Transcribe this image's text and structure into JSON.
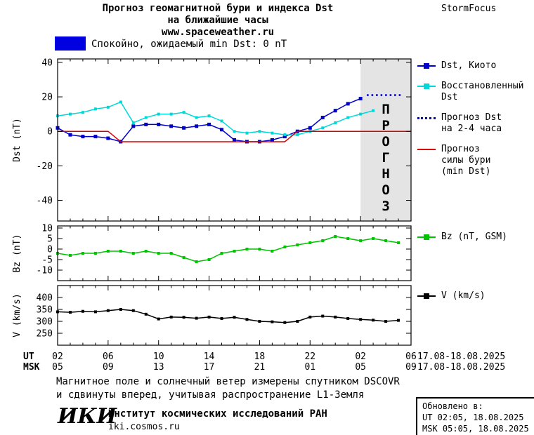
{
  "header": {
    "title_line1": "Прогноз геомагнитной бури и индекса Dst",
    "title_line2": "на ближайшие часы",
    "url": "www.spaceweather.ru",
    "brand": "StormFocus"
  },
  "status": {
    "label": "Спокойно, ожидаемый min Dst: 0 nT",
    "swatch_color": "#0000e0"
  },
  "x_axis": {
    "hour_min": 2,
    "hour_max": 30,
    "major_hours": [
      2,
      6,
      10,
      14,
      18,
      22,
      26,
      30
    ],
    "minor_step": 1,
    "ut_label": "UT",
    "msk_label": "MSK",
    "ut_ticks": [
      "02",
      "06",
      "10",
      "14",
      "18",
      "22",
      "02",
      "06"
    ],
    "msk_ticks": [
      "05",
      "09",
      "13",
      "17",
      "21",
      "01",
      "05",
      "09"
    ],
    "ut_date": "17.08-18.08.2025",
    "msk_date": "17.08-18.08.2025"
  },
  "chart_data": [
    {
      "name": "dst",
      "type": "line",
      "ylabel": "Dst (nT)",
      "ylim": [
        -52,
        42
      ],
      "yticks": [
        40,
        20,
        0,
        -20,
        -40
      ],
      "ytick_labels": [
        "40",
        "20",
        "0",
        "-20",
        "-40"
      ],
      "forecast_band": {
        "from": 26,
        "to": 30,
        "label": "ПРОГНОЗ",
        "fill": "#e4e4e4",
        "text_color": "#b0b0b0"
      },
      "series": [
        {
          "name": "Dst, Киото",
          "color": "#0000cc",
          "style": "solid",
          "marker": "square",
          "marker_size": 5,
          "x": [
            2,
            3,
            4,
            5,
            6,
            7,
            8,
            9,
            10,
            11,
            12,
            13,
            14,
            15,
            16,
            17,
            18,
            19,
            20,
            21,
            22,
            23,
            24,
            25,
            26
          ],
          "values": [
            2,
            -2,
            -3,
            -3,
            -4,
            -6,
            3,
            4,
            4,
            3,
            2,
            3,
            4,
            1,
            -5,
            -6,
            -6,
            -5,
            -3,
            0,
            2,
            8,
            12,
            16,
            19
          ]
        },
        {
          "name": "Восстановленный Dst",
          "color": "#00d8d8",
          "style": "solid",
          "marker": "square",
          "marker_size": 4,
          "x": [
            2,
            3,
            4,
            5,
            6,
            7,
            8,
            9,
            10,
            11,
            12,
            13,
            14,
            15,
            16,
            17,
            18,
            19,
            20,
            21,
            22,
            23,
            24,
            25,
            26,
            27
          ],
          "values": [
            9,
            10,
            11,
            13,
            14,
            17,
            5,
            8,
            10,
            10,
            11,
            8,
            9,
            6,
            0,
            -1,
            0,
            -1,
            -2,
            -2,
            0,
            2,
            5,
            8,
            10,
            12
          ]
        },
        {
          "name": "Прогноз Dst на 2-4 часа",
          "color": "#0000cc",
          "style": "dotted",
          "marker": "none",
          "x": [
            26.5,
            29.3
          ],
          "values": [
            21,
            21
          ]
        },
        {
          "name": "Прогноз силы бури (min Dst)",
          "color": "#dd0000",
          "style": "solid",
          "marker": "none",
          "x": [
            2,
            6,
            7,
            20,
            21,
            30
          ],
          "values": [
            0,
            0,
            -6,
            -6,
            0,
            0
          ]
        }
      ]
    },
    {
      "name": "bz",
      "type": "line",
      "ylabel": "Bz (nT)",
      "ylim": [
        -15,
        11
      ],
      "yticks": [
        10,
        5,
        0,
        -5,
        -10
      ],
      "ytick_labels": [
        "10",
        "5",
        "0",
        "-5",
        "-10"
      ],
      "series": [
        {
          "name": "Bz (nT, GSM)",
          "color": "#00c400",
          "style": "solid",
          "marker": "square",
          "marker_size": 4,
          "x": [
            2,
            3,
            4,
            5,
            6,
            7,
            8,
            9,
            10,
            11,
            12,
            13,
            14,
            15,
            16,
            17,
            18,
            19,
            20,
            21,
            22,
            23,
            24,
            25,
            26,
            27,
            28,
            29
          ],
          "values": [
            -2,
            -3,
            -2,
            -2,
            -1,
            -1,
            -2,
            -1,
            -2,
            -2,
            -4,
            -6,
            -5,
            -2,
            -1,
            0,
            0,
            -1,
            1,
            2,
            3,
            4,
            6,
            5,
            4,
            5,
            4,
            3
          ]
        }
      ]
    },
    {
      "name": "v",
      "type": "line",
      "ylabel": "V (km/s)",
      "ylim": [
        200,
        450
      ],
      "yticks": [
        400,
        350,
        300,
        250
      ],
      "ytick_labels": [
        "400",
        "350",
        "300",
        "250"
      ],
      "series": [
        {
          "name": "V (km/s)",
          "color": "#000000",
          "style": "solid",
          "marker": "square",
          "marker_size": 4,
          "x": [
            2,
            3,
            4,
            5,
            6,
            7,
            8,
            9,
            10,
            11,
            12,
            13,
            14,
            15,
            16,
            17,
            18,
            19,
            20,
            21,
            22,
            23,
            24,
            25,
            26,
            27,
            28,
            29
          ],
          "values": [
            340,
            338,
            342,
            340,
            345,
            350,
            345,
            330,
            310,
            318,
            317,
            313,
            318,
            312,
            317,
            308,
            300,
            298,
            295,
            300,
            318,
            322,
            318,
            312,
            308,
            305,
            300,
            304
          ]
        }
      ]
    }
  ],
  "legend": {
    "dst": [
      {
        "label": "Dst, Киото",
        "color": "#0000cc"
      },
      {
        "label": "Восстановленный\nDst",
        "color": "#00d8d8"
      },
      {
        "label": "Прогноз Dst\nна 2-4 часа",
        "color": "#0000cc"
      },
      {
        "label": "Прогноз\nсилы бури\n(min Dst)",
        "color": "#dd0000"
      }
    ],
    "bz": {
      "label": "Bz (nT, GSM)",
      "color": "#00c400"
    },
    "v": {
      "label": "V (km/s)",
      "color": "#000000"
    }
  },
  "footer": {
    "note_line1": "Магнитное поле и солнечный ветер измерены спутником DSCOVR",
    "note_line2": "и сдвинуты вперед, учитывая распространение L1-Земля",
    "logo": "ИКИ",
    "institute": "Институт космических исследований РАН",
    "site": "iki.cosmos.ru",
    "updated_label": "Обновлено в:",
    "updated_ut": "UT  02:05, 18.08.2025",
    "updated_msk": "MSK 05:05, 18.08.2025"
  }
}
